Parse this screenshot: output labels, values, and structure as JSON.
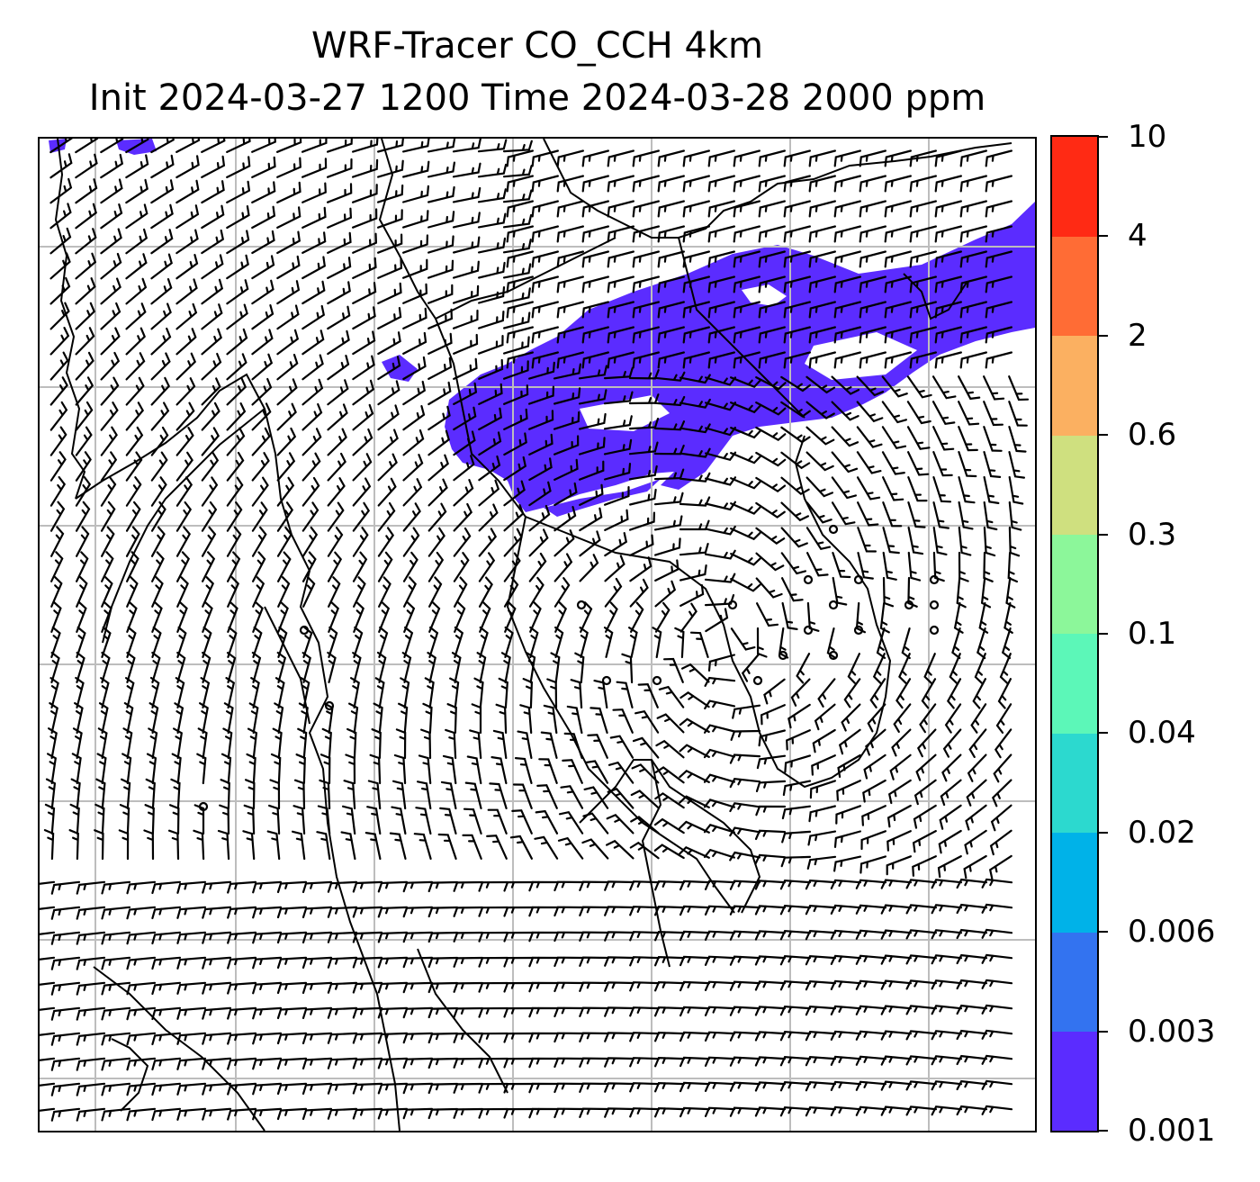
{
  "title": {
    "line1": "WRF-Tracer CO_CCH 4km",
    "line2": "Init 2024-03-27 1200 Time 2024-03-28 2000 ppm"
  },
  "map": {
    "field": "CO_CCH tracer concentration (filled) with wind barbs",
    "plume_color": "#5b2cff",
    "grid_color": "#bdbdbd",
    "coastline_color": "#000000",
    "barb_color": "#000000"
  },
  "colorbar": {
    "levels": [
      "0.001",
      "0.003",
      "0.006",
      "0.02",
      "0.04",
      "0.1",
      "0.3",
      "0.6",
      "2",
      "4",
      "10"
    ],
    "colors": [
      "#5b2cff",
      "#3373f0",
      "#00b2e8",
      "#2cd9cf",
      "#5cf7b8",
      "#8cf79a",
      "#cfe07f",
      "#fbb061",
      "#ff6c35",
      "#ff2a14"
    ]
  }
}
